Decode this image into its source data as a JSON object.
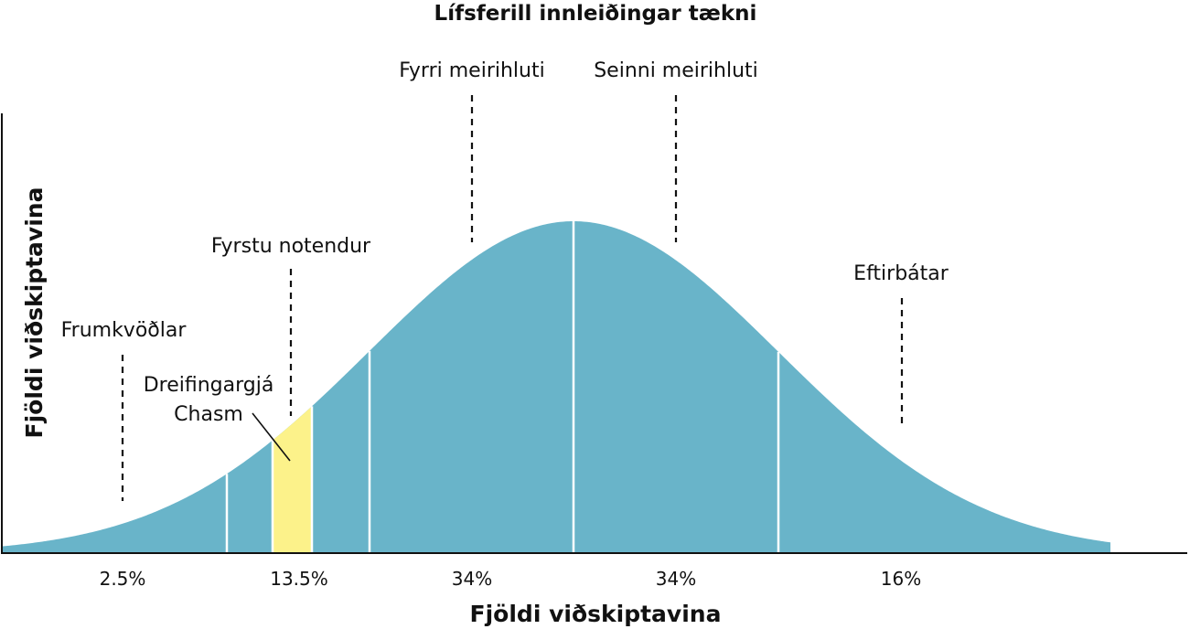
{
  "title": "Lífsferill innleiðingar tækni",
  "y_axis_label": "Fjöldi viðskiptavina",
  "x_axis_label": "Fjöldi viðskiptavina",
  "colors": {
    "curve": "#69B4C9",
    "chasm": "#FCF28A",
    "divider": "#FFFFFF",
    "axis": "#111111"
  },
  "segments": [
    {
      "label": "Frumkvöðlar",
      "percent": "2.5%"
    },
    {
      "label": "Fyrstu notendur",
      "percent": "13.5%"
    },
    {
      "label": "Fyrri meirihluti",
      "percent": "34%"
    },
    {
      "label": "Seinni meirihluti",
      "percent": "34%"
    },
    {
      "label": "Eftirbátar",
      "percent": "16%"
    }
  ],
  "chasm": {
    "line1": "Dreifingargjá",
    "line2": "Chasm"
  }
}
